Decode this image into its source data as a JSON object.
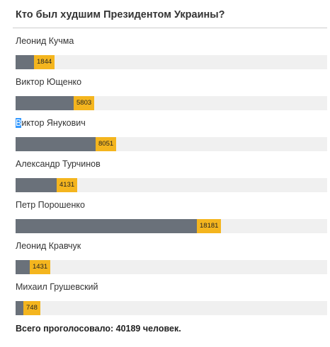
{
  "poll": {
    "title": "Кто был худшим Президентом Украины?",
    "total_text": "Всего проголосовало: 40189 человек."
  },
  "chart_data": {
    "type": "bar",
    "orientation": "horizontal",
    "title": "Кто был худшим Президентом Украины?",
    "categories": [
      "Леонид Кучма",
      "Виктор Ющенко",
      "Виктор Янукович",
      "Александр Турчинов",
      "Петр Порошенко",
      "Леонид Кравчук",
      "Михаил Грушевский"
    ],
    "values": [
      1844,
      5803,
      8051,
      4131,
      18181,
      1431,
      748
    ],
    "value_labels": [
      "1844",
      "5803",
      "8051",
      "4131",
      "18181",
      "1431",
      "748"
    ],
    "total": 40189,
    "bar_color": "#6a717a",
    "label_color": "#f4b51e",
    "track_color": "#f0f0f0"
  }
}
